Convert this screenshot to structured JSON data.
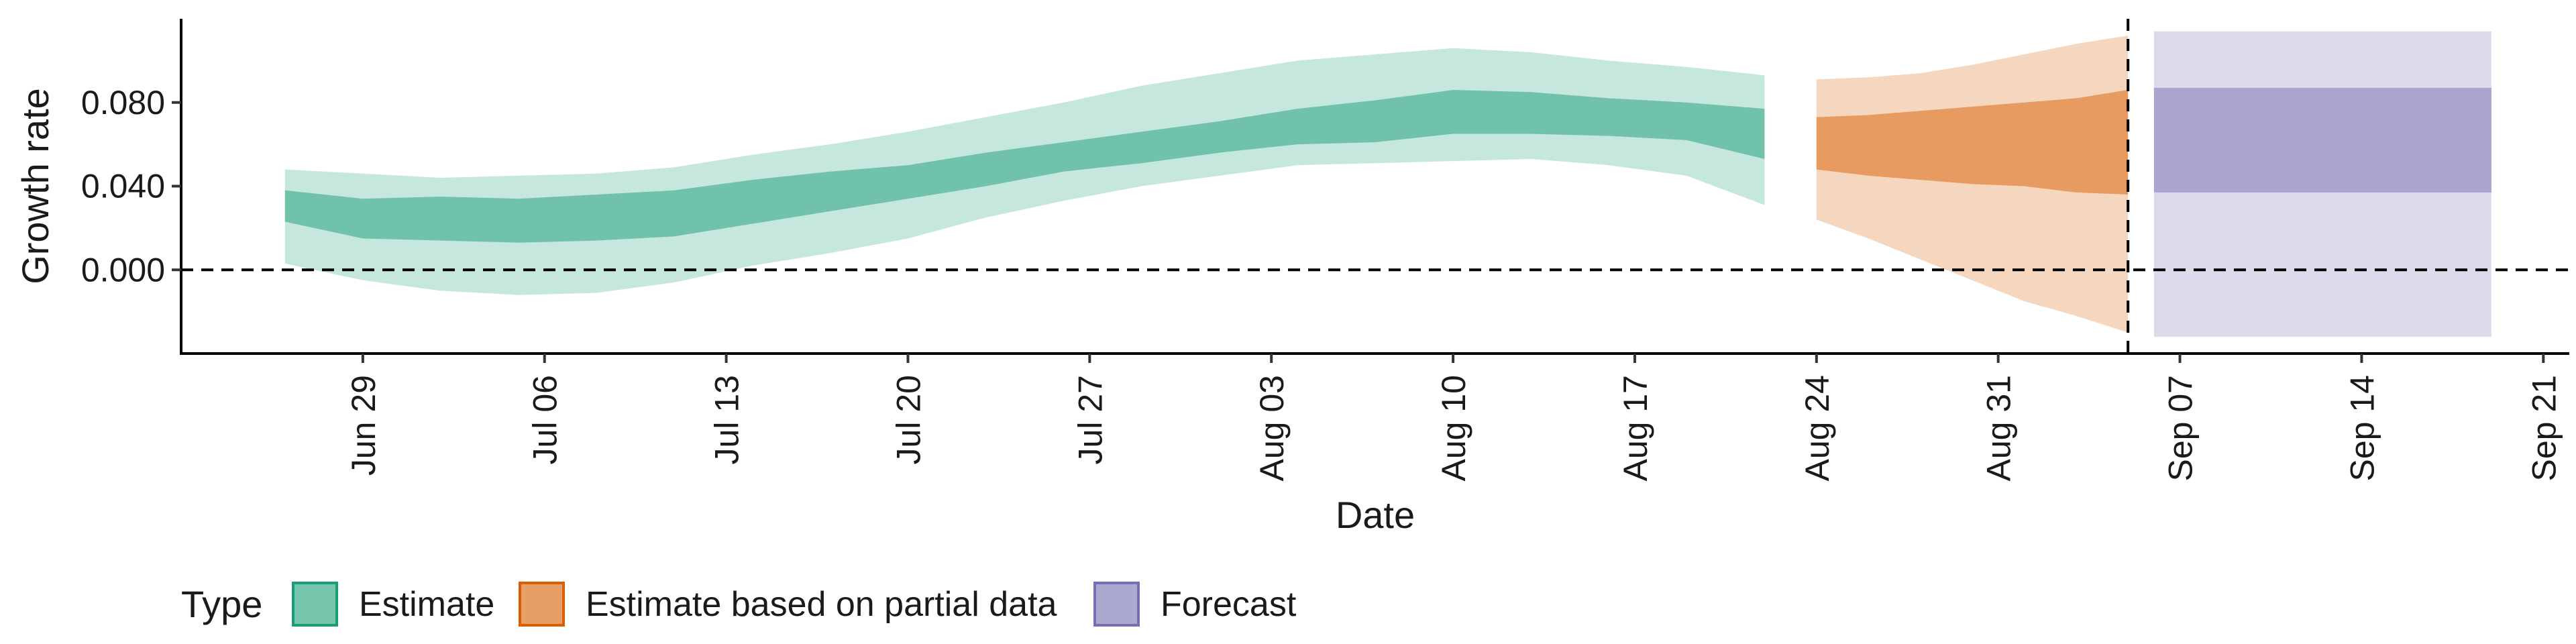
{
  "chart_data": {
    "type": "area",
    "xlabel": "Date",
    "ylabel": "Growth rate",
    "ylim": [
      -0.04,
      0.12
    ],
    "xlim": [
      "2020-06-22",
      "2020-09-22"
    ],
    "x_ticks": [
      {
        "date": "2020-06-29",
        "label": "Jun 29"
      },
      {
        "date": "2020-07-06",
        "label": "Jul 06"
      },
      {
        "date": "2020-07-13",
        "label": "Jul 13"
      },
      {
        "date": "2020-07-20",
        "label": "Jul 20"
      },
      {
        "date": "2020-07-27",
        "label": "Jul 27"
      },
      {
        "date": "2020-08-03",
        "label": "Aug 03"
      },
      {
        "date": "2020-08-10",
        "label": "Aug 10"
      },
      {
        "date": "2020-08-17",
        "label": "Aug 17"
      },
      {
        "date": "2020-08-24",
        "label": "Aug 24"
      },
      {
        "date": "2020-08-31",
        "label": "Aug 31"
      },
      {
        "date": "2020-09-07",
        "label": "Sep 07"
      },
      {
        "date": "2020-09-14",
        "label": "Sep 14"
      },
      {
        "date": "2020-09-21",
        "label": "Sep 21"
      }
    ],
    "y_ticks": [
      {
        "value": 0.0,
        "label": "0.000"
      },
      {
        "value": 0.04,
        "label": "0.040"
      },
      {
        "value": 0.08,
        "label": "0.080"
      }
    ],
    "reference_lines": {
      "horizontal_y": 0.0,
      "vertical_x": "2020-09-05"
    },
    "grid": false,
    "legend": {
      "title": "Type",
      "position": "bottom-left",
      "items": [
        {
          "label": "Estimate",
          "color": "#1b9e77"
        },
        {
          "label": "Estimate based on partial data",
          "color": "#d95f02"
        },
        {
          "label": "Forecast",
          "color": "#7570b3"
        }
      ]
    },
    "series": [
      {
        "name": "Estimate",
        "color": "#1b9e77",
        "x": [
          "2020-06-26",
          "2020-06-29",
          "2020-07-02",
          "2020-07-05",
          "2020-07-08",
          "2020-07-11",
          "2020-07-14",
          "2020-07-17",
          "2020-07-20",
          "2020-07-23",
          "2020-07-26",
          "2020-07-29",
          "2020-08-01",
          "2020-08-04",
          "2020-08-07",
          "2020-08-10",
          "2020-08-13",
          "2020-08-16",
          "2020-08-19",
          "2020-08-22"
        ],
        "lower90": [
          0.003,
          -0.005,
          -0.01,
          -0.012,
          -0.011,
          -0.006,
          0.002,
          0.008,
          0.015,
          0.025,
          0.033,
          0.04,
          0.045,
          0.05,
          0.051,
          0.052,
          0.053,
          0.05,
          0.045,
          0.031
        ],
        "lower50": [
          0.023,
          0.015,
          0.014,
          0.013,
          0.014,
          0.016,
          0.022,
          0.028,
          0.034,
          0.04,
          0.047,
          0.051,
          0.056,
          0.06,
          0.061,
          0.065,
          0.065,
          0.064,
          0.062,
          0.053
        ],
        "upper50": [
          0.038,
          0.034,
          0.035,
          0.034,
          0.036,
          0.038,
          0.043,
          0.047,
          0.05,
          0.056,
          0.061,
          0.066,
          0.071,
          0.077,
          0.081,
          0.086,
          0.085,
          0.082,
          0.08,
          0.077
        ],
        "upper90": [
          0.048,
          0.046,
          0.044,
          0.045,
          0.046,
          0.049,
          0.055,
          0.06,
          0.066,
          0.073,
          0.08,
          0.088,
          0.094,
          0.1,
          0.103,
          0.106,
          0.104,
          0.1,
          0.097,
          0.093
        ]
      },
      {
        "name": "Estimate based on partial data",
        "color": "#d95f02",
        "x": [
          "2020-08-24",
          "2020-08-26",
          "2020-08-28",
          "2020-08-30",
          "2020-09-01",
          "2020-09-03",
          "2020-09-05"
        ],
        "lower90": [
          0.024,
          0.015,
          0.005,
          -0.005,
          -0.015,
          -0.022,
          -0.03
        ],
        "lower50": [
          0.048,
          0.045,
          0.043,
          0.041,
          0.04,
          0.037,
          0.036
        ],
        "upper50": [
          0.073,
          0.074,
          0.076,
          0.078,
          0.08,
          0.082,
          0.086
        ],
        "upper90": [
          0.091,
          0.092,
          0.094,
          0.098,
          0.103,
          0.108,
          0.112
        ]
      },
      {
        "name": "Forecast",
        "color": "#7570b3",
        "x": [
          "2020-09-06",
          "2020-09-19"
        ],
        "lower90": [
          -0.032,
          -0.032
        ],
        "lower50": [
          0.037,
          0.037
        ],
        "upper50": [
          0.087,
          0.087
        ],
        "upper90": [
          0.114,
          0.114
        ]
      }
    ]
  }
}
